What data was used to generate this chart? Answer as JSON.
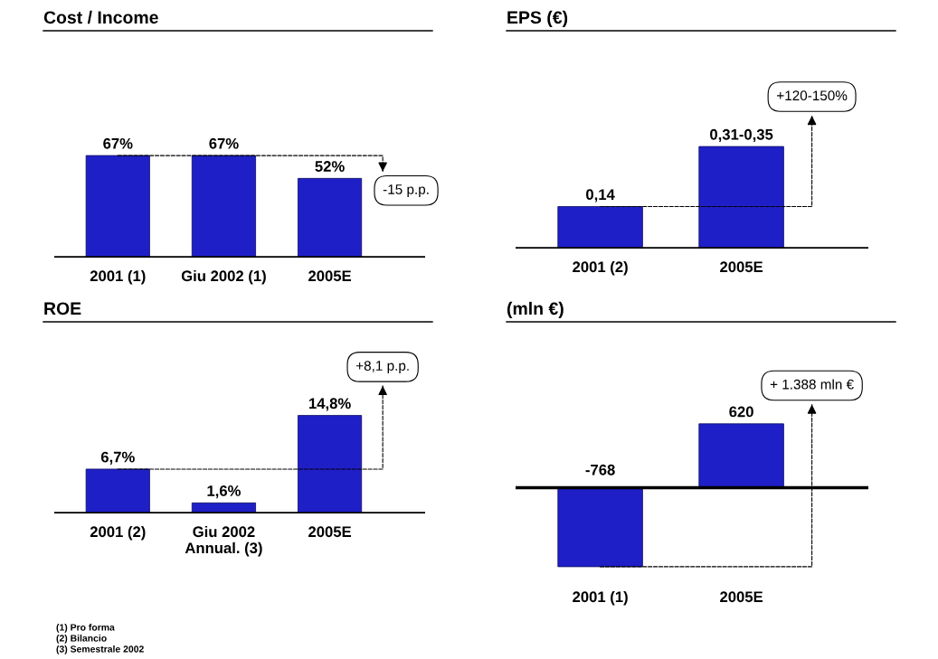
{
  "chart_data": [
    {
      "type": "bar",
      "title": "Cost / Income",
      "categories": [
        "2001 (1)",
        "Giu 2002 (1)",
        "2005E"
      ],
      "values": [
        67,
        67,
        52
      ],
      "value_labels": [
        "67%",
        "67%",
        "52%"
      ],
      "color": "#1f1fc8",
      "annotations": [
        "-15 p.p."
      ]
    },
    {
      "type": "bar",
      "title": "EPS (€)",
      "categories": [
        "2001 (2)",
        "2005E"
      ],
      "values": [
        0.14,
        0.34
      ],
      "value_labels": [
        "0,14",
        "0,31-0,35"
      ],
      "color": "#1f1fc8",
      "annotations": [
        "+120-150%"
      ]
    },
    {
      "type": "bar",
      "title": "ROE",
      "categories": [
        "2001 (2)",
        "Giu 2002\nAnnual. (3)",
        "2005E"
      ],
      "values": [
        6.7,
        1.6,
        14.8
      ],
      "value_labels": [
        "6,7%",
        "1,6%",
        "14,8%"
      ],
      "color": "#1f1fc8",
      "annotations": [
        "+8,1 p.p.",
        "(1) Pro forma",
        "(2) Bilancio",
        "(3) Semestrale 2002"
      ]
    },
    {
      "type": "bar",
      "title": "(mln €)",
      "categories": [
        "2001 (1)",
        "2005E"
      ],
      "values": [
        -768,
        620
      ],
      "value_labels": [
        "-768",
        "620"
      ],
      "color": "#1f1fc8",
      "annotations": [
        "+ 1.388 mln €"
      ]
    }
  ]
}
